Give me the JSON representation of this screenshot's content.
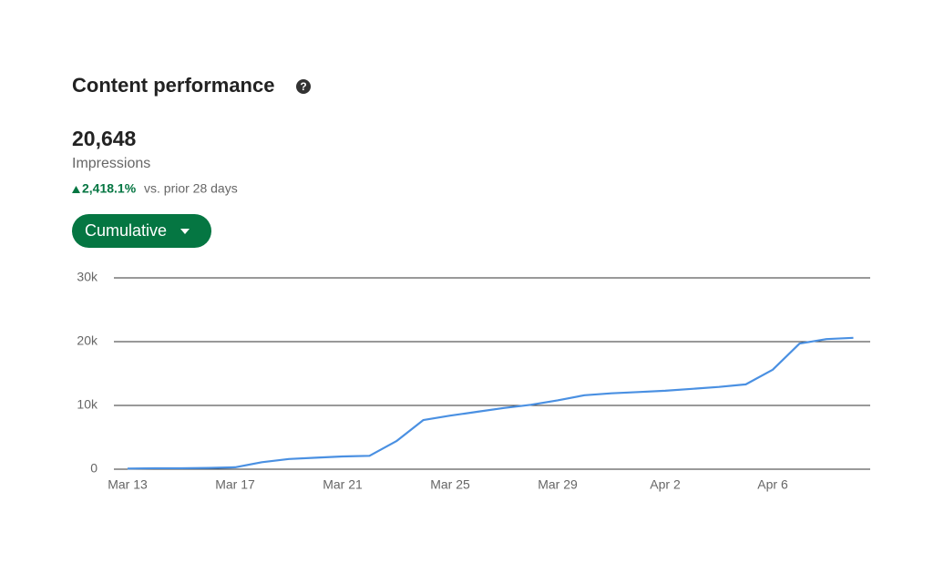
{
  "header": {
    "title": "Content performance"
  },
  "metric": {
    "value": "20,648",
    "label": "Impressions",
    "change": "2,418.1%",
    "comparison": "vs. prior 28 days"
  },
  "button": {
    "label": "Cumulative"
  },
  "chart_data": {
    "type": "line",
    "categories": [
      "Mar 13",
      null,
      null,
      null,
      "Mar 17",
      null,
      null,
      null,
      "Mar 21",
      null,
      null,
      null,
      "Mar 25",
      null,
      null,
      null,
      "Mar 29",
      null,
      null,
      null,
      "Apr 2",
      null,
      null,
      null,
      "Apr 6",
      null,
      null,
      null
    ],
    "values": [
      100,
      150,
      150,
      200,
      300,
      1100,
      1600,
      1800,
      2000,
      2100,
      4400,
      7700,
      8400,
      9000,
      9600,
      10100,
      10800,
      11600,
      11900,
      12100,
      12300,
      12600,
      12900,
      13300,
      15600,
      19700,
      20400,
      20600
    ],
    "color": "#4a90e2",
    "ylim": [
      0,
      30000
    ],
    "yticks": [
      0,
      {
        "value": 10000,
        "label": "10k"
      },
      {
        "value": 20000,
        "label": "20k"
      },
      {
        "value": 30000,
        "label": "30k"
      }
    ],
    "grid": true
  }
}
